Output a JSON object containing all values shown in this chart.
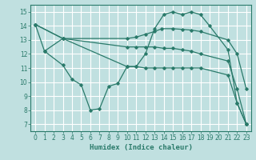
{
  "bg_color": "#c0e0e0",
  "grid_color": "#ffffff",
  "line_color": "#2a7a6a",
  "xlabel": "Humidex (Indice chaleur)",
  "ylim": [
    6.5,
    15.5
  ],
  "xlim": [
    -0.5,
    23.5
  ],
  "yticks": [
    7,
    8,
    9,
    10,
    11,
    12,
    13,
    14,
    15
  ],
  "xticks": [
    0,
    1,
    2,
    3,
    4,
    5,
    6,
    7,
    8,
    9,
    10,
    11,
    12,
    13,
    14,
    15,
    16,
    17,
    18,
    19,
    20,
    21,
    22,
    23
  ],
  "lines": [
    {
      "x": [
        0,
        1,
        3,
        10,
        11,
        12,
        13,
        14,
        15,
        16,
        17,
        18,
        19,
        21,
        22,
        23
      ],
      "y": [
        14.1,
        12.2,
        13.1,
        11.1,
        11.1,
        12.0,
        13.8,
        14.8,
        15.0,
        14.8,
        15.0,
        14.8,
        14.0,
        12.3,
        8.5,
        7.0
      ]
    },
    {
      "x": [
        0,
        3,
        10,
        11,
        12,
        13,
        13.8,
        15,
        16,
        17,
        18,
        21,
        22,
        23
      ],
      "y": [
        14.1,
        13.1,
        13.1,
        13.2,
        13.4,
        13.6,
        13.8,
        13.8,
        13.75,
        13.7,
        13.6,
        13.0,
        12.0,
        9.5
      ]
    },
    {
      "x": [
        0,
        3,
        10,
        11,
        12,
        13,
        14,
        15,
        16,
        17,
        18,
        21,
        22,
        23
      ],
      "y": [
        14.1,
        13.1,
        12.5,
        12.5,
        12.5,
        12.5,
        12.4,
        12.4,
        12.3,
        12.2,
        12.0,
        11.5,
        9.5,
        7.0
      ]
    },
    {
      "x": [
        1,
        3,
        4,
        5,
        6,
        7,
        8,
        9,
        10,
        11,
        12,
        13,
        14,
        15,
        16,
        17,
        18,
        21,
        22,
        23
      ],
      "y": [
        12.2,
        11.2,
        10.2,
        9.8,
        8.0,
        8.1,
        9.7,
        9.9,
        11.1,
        11.1,
        11.0,
        11.0,
        11.0,
        11.0,
        11.0,
        11.0,
        11.0,
        10.5,
        8.5,
        7.0
      ]
    }
  ]
}
